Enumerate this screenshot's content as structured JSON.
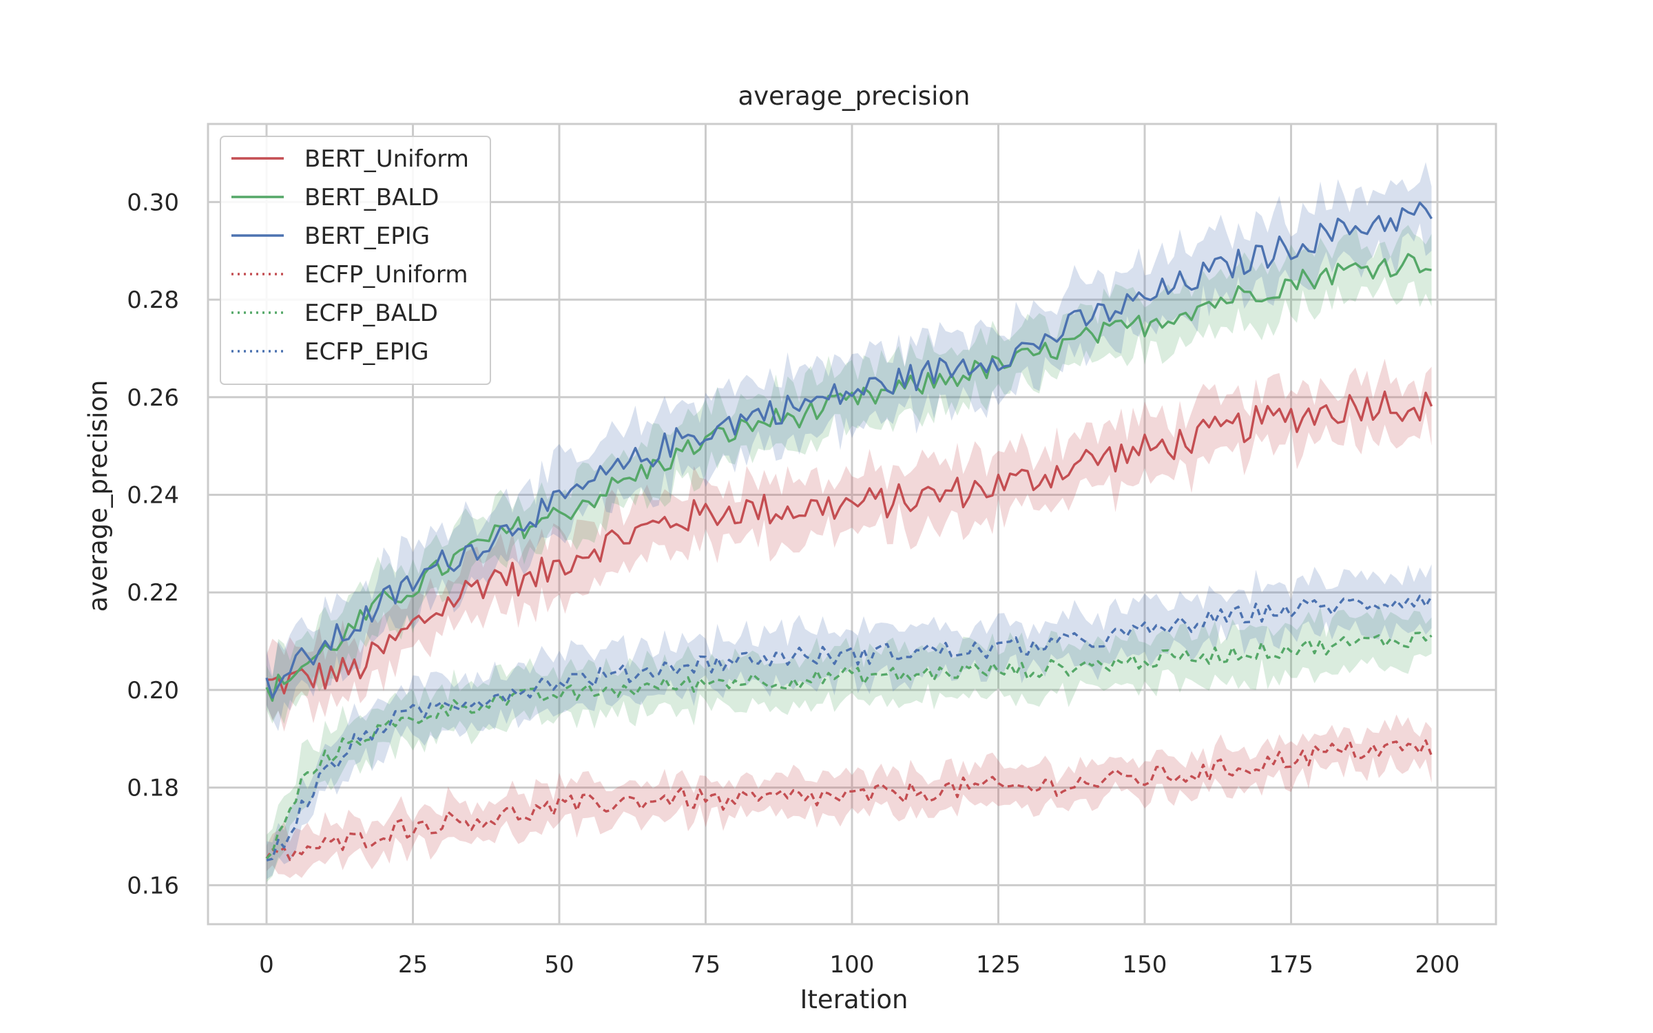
{
  "chart_data": {
    "type": "line",
    "title": "average_precision",
    "xlabel": "Iteration",
    "ylabel": "average_precision",
    "xlim": [
      -10,
      210
    ],
    "ylim": [
      0.152,
      0.316
    ],
    "x_ticks": [
      0,
      25,
      50,
      75,
      100,
      125,
      150,
      175,
      200
    ],
    "x_tick_labels": [
      "0",
      "25",
      "50",
      "75",
      "100",
      "125",
      "150",
      "175",
      "200"
    ],
    "y_ticks": [
      0.16,
      0.18,
      0.2,
      0.22,
      0.24,
      0.26,
      0.28,
      0.3
    ],
    "y_tick_labels": [
      "0.16",
      "0.18",
      "0.20",
      "0.22",
      "0.24",
      "0.26",
      "0.28",
      "0.30"
    ],
    "grid": true,
    "legend_position": "top-left",
    "x_max": 199,
    "series": [
      {
        "name": "BERT_Uniform",
        "color": "#c44e52",
        "style": "solid",
        "knots": [
          [
            0,
            0.201
          ],
          [
            5,
            0.202
          ],
          [
            10,
            0.203
          ],
          [
            15,
            0.204
          ],
          [
            20,
            0.208
          ],
          [
            25,
            0.213
          ],
          [
            30,
            0.217
          ],
          [
            35,
            0.221
          ],
          [
            40,
            0.224
          ],
          [
            45,
            0.222
          ],
          [
            50,
            0.226
          ],
          [
            55,
            0.229
          ],
          [
            60,
            0.231
          ],
          [
            65,
            0.233
          ],
          [
            70,
            0.235
          ],
          [
            75,
            0.236
          ],
          [
            80,
            0.237
          ],
          [
            85,
            0.237
          ],
          [
            90,
            0.237
          ],
          [
            100,
            0.238
          ],
          [
            110,
            0.239
          ],
          [
            120,
            0.241
          ],
          [
            130,
            0.243
          ],
          [
            140,
            0.247
          ],
          [
            150,
            0.249
          ],
          [
            160,
            0.252
          ],
          [
            170,
            0.255
          ],
          [
            180,
            0.257
          ],
          [
            190,
            0.259
          ],
          [
            199,
            0.258
          ]
        ],
        "band": 0.006,
        "noise": 0.0035
      },
      {
        "name": "BERT_BALD",
        "color": "#55a868",
        "style": "solid",
        "knots": [
          [
            0,
            0.199
          ],
          [
            5,
            0.204
          ],
          [
            10,
            0.208
          ],
          [
            15,
            0.213
          ],
          [
            20,
            0.218
          ],
          [
            25,
            0.221
          ],
          [
            30,
            0.225
          ],
          [
            35,
            0.229
          ],
          [
            40,
            0.232
          ],
          [
            45,
            0.234
          ],
          [
            50,
            0.236
          ],
          [
            55,
            0.239
          ],
          [
            60,
            0.242
          ],
          [
            65,
            0.245
          ],
          [
            70,
            0.248
          ],
          [
            75,
            0.251
          ],
          [
            80,
            0.253
          ],
          [
            85,
            0.255
          ],
          [
            90,
            0.256
          ],
          [
            100,
            0.259
          ],
          [
            110,
            0.262
          ],
          [
            120,
            0.265
          ],
          [
            130,
            0.268
          ],
          [
            140,
            0.272
          ],
          [
            150,
            0.275
          ],
          [
            160,
            0.279
          ],
          [
            170,
            0.282
          ],
          [
            180,
            0.285
          ],
          [
            190,
            0.287
          ],
          [
            199,
            0.288
          ]
        ],
        "band": 0.006,
        "noise": 0.0025
      },
      {
        "name": "BERT_EPIG",
        "color": "#4c72b0",
        "style": "solid",
        "knots": [
          [
            0,
            0.2
          ],
          [
            5,
            0.205
          ],
          [
            10,
            0.209
          ],
          [
            15,
            0.213
          ],
          [
            20,
            0.218
          ],
          [
            25,
            0.222
          ],
          [
            30,
            0.226
          ],
          [
            35,
            0.229
          ],
          [
            40,
            0.232
          ],
          [
            45,
            0.236
          ],
          [
            50,
            0.238
          ],
          [
            55,
            0.242
          ],
          [
            60,
            0.245
          ],
          [
            65,
            0.248
          ],
          [
            70,
            0.251
          ],
          [
            75,
            0.253
          ],
          [
            80,
            0.255
          ],
          [
            85,
            0.257
          ],
          [
            90,
            0.258
          ],
          [
            100,
            0.261
          ],
          [
            110,
            0.264
          ],
          [
            120,
            0.267
          ],
          [
            130,
            0.27
          ],
          [
            140,
            0.276
          ],
          [
            150,
            0.28
          ],
          [
            160,
            0.285
          ],
          [
            170,
            0.289
          ],
          [
            180,
            0.293
          ],
          [
            190,
            0.296
          ],
          [
            199,
            0.298
          ]
        ],
        "band": 0.007,
        "noise": 0.003
      },
      {
        "name": "ECFP_Uniform",
        "color": "#c44e52",
        "style": "dotted",
        "knots": [
          [
            0,
            0.165
          ],
          [
            5,
            0.167
          ],
          [
            10,
            0.168
          ],
          [
            15,
            0.169
          ],
          [
            20,
            0.171
          ],
          [
            25,
            0.172
          ],
          [
            30,
            0.173
          ],
          [
            40,
            0.174
          ],
          [
            50,
            0.176
          ],
          [
            60,
            0.177
          ],
          [
            70,
            0.178
          ],
          [
            80,
            0.177
          ],
          [
            90,
            0.178
          ],
          [
            100,
            0.178
          ],
          [
            110,
            0.179
          ],
          [
            120,
            0.18
          ],
          [
            130,
            0.18
          ],
          [
            140,
            0.181
          ],
          [
            150,
            0.182
          ],
          [
            160,
            0.183
          ],
          [
            170,
            0.185
          ],
          [
            180,
            0.187
          ],
          [
            190,
            0.188
          ],
          [
            199,
            0.188
          ]
        ],
        "band": 0.004,
        "noise": 0.0022
      },
      {
        "name": "ECFP_BALD",
        "color": "#55a868",
        "style": "dotted",
        "knots": [
          [
            0,
            0.165
          ],
          [
            3,
            0.172
          ],
          [
            6,
            0.181
          ],
          [
            10,
            0.186
          ],
          [
            15,
            0.19
          ],
          [
            20,
            0.192
          ],
          [
            25,
            0.194
          ],
          [
            30,
            0.196
          ],
          [
            40,
            0.198
          ],
          [
            50,
            0.199
          ],
          [
            60,
            0.2
          ],
          [
            70,
            0.201
          ],
          [
            80,
            0.202
          ],
          [
            90,
            0.202
          ],
          [
            100,
            0.203
          ],
          [
            110,
            0.203
          ],
          [
            120,
            0.204
          ],
          [
            130,
            0.204
          ],
          [
            140,
            0.205
          ],
          [
            150,
            0.206
          ],
          [
            160,
            0.207
          ],
          [
            170,
            0.208
          ],
          [
            180,
            0.209
          ],
          [
            190,
            0.21
          ],
          [
            199,
            0.211
          ]
        ],
        "band": 0.005,
        "noise": 0.0018
      },
      {
        "name": "ECFP_EPIG",
        "color": "#4c72b0",
        "style": "dotted",
        "knots": [
          [
            0,
            0.165
          ],
          [
            3,
            0.169
          ],
          [
            6,
            0.176
          ],
          [
            10,
            0.183
          ],
          [
            15,
            0.189
          ],
          [
            20,
            0.193
          ],
          [
            25,
            0.195
          ],
          [
            30,
            0.197
          ],
          [
            40,
            0.199
          ],
          [
            50,
            0.202
          ],
          [
            60,
            0.203
          ],
          [
            70,
            0.205
          ],
          [
            80,
            0.206
          ],
          [
            90,
            0.207
          ],
          [
            100,
            0.207
          ],
          [
            110,
            0.208
          ],
          [
            120,
            0.208
          ],
          [
            130,
            0.209
          ],
          [
            140,
            0.21
          ],
          [
            150,
            0.212
          ],
          [
            160,
            0.214
          ],
          [
            170,
            0.216
          ],
          [
            180,
            0.217
          ],
          [
            190,
            0.218
          ],
          [
            199,
            0.219
          ]
        ],
        "band": 0.005,
        "noise": 0.002
      }
    ]
  }
}
